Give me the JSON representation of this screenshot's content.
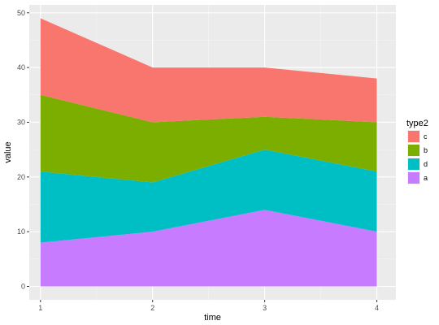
{
  "chart_data": {
    "type": "area",
    "stacked": true,
    "x": [
      1,
      2,
      3,
      4
    ],
    "xlabel": "time",
    "ylabel": "value",
    "xlim": [
      0.9,
      4.17
    ],
    "ylim": [
      -2.45,
      51.45
    ],
    "xticks": [
      "1",
      "2",
      "3",
      "4"
    ],
    "yticks": [
      "0",
      "10",
      "20",
      "30",
      "40",
      "50"
    ],
    "grid": true,
    "legend_position": "right",
    "legend_title": "type2",
    "series": [
      {
        "name": "a",
        "color": "#C77CFF",
        "values": [
          8,
          10,
          14,
          10
        ]
      },
      {
        "name": "d",
        "color": "#00BFC4",
        "values": [
          13,
          9,
          11,
          11
        ]
      },
      {
        "name": "b",
        "color": "#7CAE00",
        "values": [
          14,
          11,
          6,
          9
        ]
      },
      {
        "name": "c",
        "color": "#F8766D",
        "values": [
          14,
          10,
          9,
          8
        ]
      }
    ],
    "legend_order": [
      "c",
      "b",
      "d",
      "a"
    ]
  }
}
